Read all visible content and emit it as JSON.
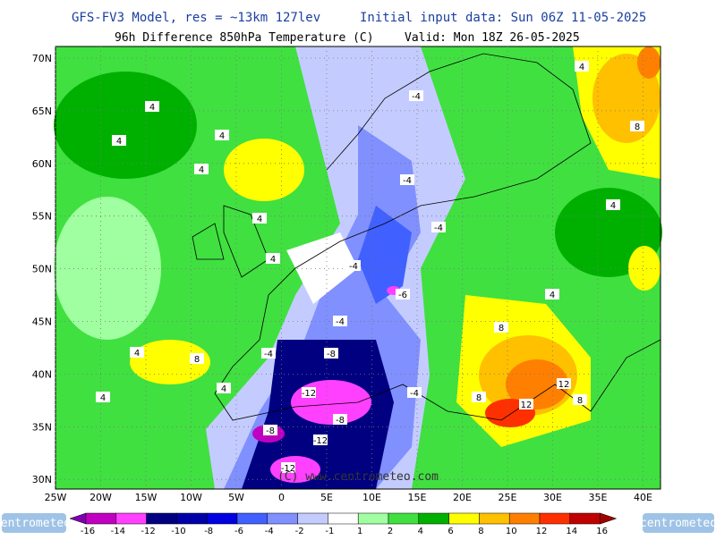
{
  "header": {
    "title": "GFS-FV3 Model, res = ~13km 127lev",
    "init": "Initial input data: Sun 06Z 11-05-2025",
    "subtitle": "96h Difference 850hPa Temperature (C)",
    "valid": "Valid: Mon 18Z 26-05-2025"
  },
  "map": {
    "lat_labels": [
      "70N",
      "65N",
      "60N",
      "55N",
      "50N",
      "45N",
      "40N",
      "35N",
      "30N"
    ],
    "lon_labels": [
      "25W",
      "20W",
      "15W",
      "10W",
      "5W",
      "0",
      "5E",
      "10E",
      "15E",
      "20E",
      "25E",
      "30E",
      "35E",
      "40E"
    ],
    "contour_labels": [
      "4",
      "4",
      "4",
      "4",
      "4",
      "4",
      "4",
      "-4",
      "-4",
      "-4",
      "-4",
      "-4",
      "-4",
      "-6",
      "-8",
      "-8",
      "-12",
      "-12",
      "-12",
      "-8",
      "4",
      "4",
      "8",
      "8",
      "8",
      "12",
      "12",
      "8",
      "4",
      "4",
      "8",
      "-4",
      "4"
    ],
    "watermark": "(C) www.centrometeo.com"
  },
  "colorbar": {
    "labels": [
      "-16",
      "-14",
      "-12",
      "-10",
      "-8",
      "-6",
      "-4",
      "-2",
      "-1",
      "1",
      "2",
      "4",
      "6",
      "8",
      "10",
      "12",
      "14",
      "16"
    ],
    "colors": [
      "#8000b0",
      "#c000c0",
      "#ff40ff",
      "#000080",
      "#0000a8",
      "#0000e0",
      "#4060ff",
      "#8090ff",
      "#c4ccff",
      "#ffffff",
      "#a0ffa0",
      "#40e040",
      "#00b000",
      "#ffff00",
      "#ffc000",
      "#ff8000",
      "#ff3000",
      "#c00000",
      "#a00000"
    ]
  },
  "logo": {
    "left": "centrometeo",
    "right": "centrometeo"
  }
}
